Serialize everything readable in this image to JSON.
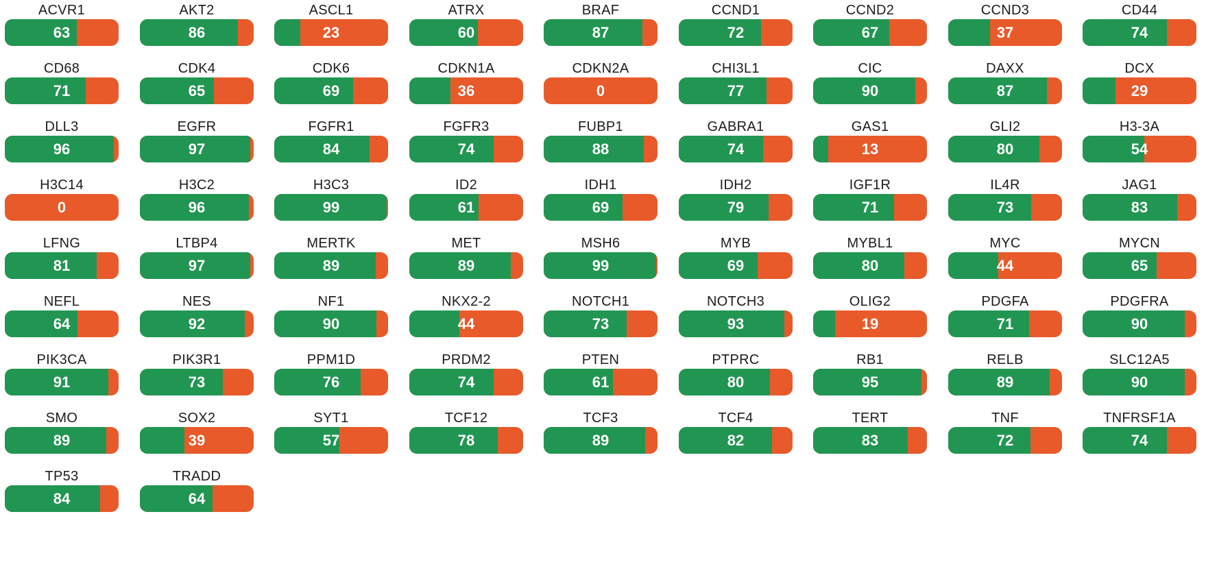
{
  "chart_data": {
    "type": "bar",
    "orientation": "horizontal-stacked-percent",
    "colors": {
      "value": "#219652",
      "remainder": "#e85a2a",
      "label": "#ffffff",
      "text": "#1c1c1c"
    },
    "categories": [
      "ACVR1",
      "AKT2",
      "ASCL1",
      "ATRX",
      "BRAF",
      "CCND1",
      "CCND2",
      "CCND3",
      "CD44",
      "CD68",
      "CDK4",
      "CDK6",
      "CDKN1A",
      "CDKN2A",
      "CHI3L1",
      "CIC",
      "DAXX",
      "DCX",
      "DLL3",
      "EGFR",
      "FGFR1",
      "FGFR3",
      "FUBP1",
      "GABRA1",
      "GAS1",
      "GLI2",
      "H3-3A",
      "H3C14",
      "H3C2",
      "H3C3",
      "ID2",
      "IDH1",
      "IDH2",
      "IGF1R",
      "IL4R",
      "JAG1",
      "LFNG",
      "LTBP4",
      "MERTK",
      "MET",
      "MSH6",
      "MYB",
      "MYBL1",
      "MYC",
      "MYCN",
      "NEFL",
      "NES",
      "NF1",
      "NKX2-2",
      "NOTCH1",
      "NOTCH3",
      "OLIG2",
      "PDGFA",
      "PDGFRA",
      "PIK3CA",
      "PIK3R1",
      "PPM1D",
      "PRDM2",
      "PTEN",
      "PTPRC",
      "RB1",
      "RELB",
      "SLC12A5",
      "SMO",
      "SOX2",
      "SYT1",
      "TCF12",
      "TCF3",
      "TCF4",
      "TERT",
      "TNF",
      "TNFRSF1A",
      "TP53",
      "TRADD"
    ],
    "values": [
      63,
      86,
      23,
      60,
      87,
      72,
      67,
      37,
      74,
      71,
      65,
      69,
      36,
      0,
      77,
      90,
      87,
      29,
      96,
      97,
      84,
      74,
      88,
      74,
      13,
      80,
      54,
      0,
      96,
      99,
      61,
      69,
      79,
      71,
      73,
      83,
      81,
      97,
      89,
      89,
      99,
      69,
      80,
      44,
      65,
      64,
      92,
      90,
      44,
      73,
      93,
      19,
      71,
      90,
      91,
      73,
      76,
      74,
      61,
      80,
      95,
      89,
      90,
      89,
      39,
      57,
      78,
      89,
      82,
      83,
      72,
      74,
      84,
      64
    ],
    "ylim": [
      0,
      100
    ],
    "grid": false,
    "columns": 9
  }
}
